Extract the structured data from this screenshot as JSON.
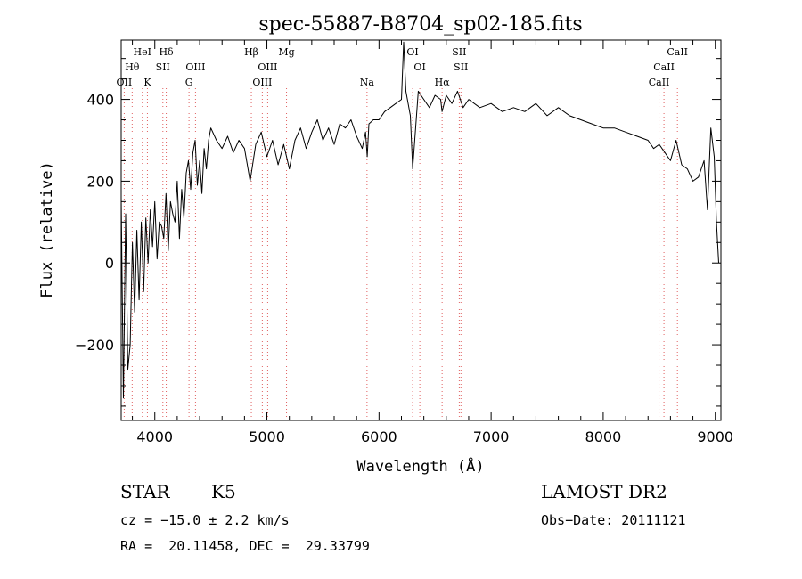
{
  "chart_data": {
    "type": "line",
    "title": "spec-55887-B8704_sp02-185.fits",
    "xlabel": "Wavelength (Å)",
    "ylabel": "Flux (relative)",
    "xlim": [
      3700,
      9050
    ],
    "ylim": [
      -385,
      545
    ],
    "x_ticks": [
      4000,
      5000,
      6000,
      7000,
      8000,
      9000
    ],
    "y_ticks": [
      -200,
      0,
      200,
      400
    ],
    "grid": false,
    "line_color": "#000000",
    "marker_line_color": "#e06060",
    "series": [
      {
        "x": [
          3700,
          3720,
          3740,
          3760,
          3780,
          3800,
          3820,
          3840,
          3860,
          3880,
          3900,
          3920,
          3940,
          3960,
          3980,
          4000,
          4020,
          4040,
          4060,
          4080,
          4100,
          4120,
          4140,
          4160,
          4180,
          4200,
          4220,
          4240,
          4260,
          4280,
          4300,
          4320,
          4340,
          4360,
          4380,
          4400,
          4420,
          4440,
          4460,
          4480,
          4500,
          4550,
          4600,
          4650,
          4700,
          4750,
          4800,
          4850,
          4900,
          4950,
          5000,
          5050,
          5100,
          5150,
          5200,
          5250,
          5300,
          5350,
          5400,
          5450,
          5500,
          5550,
          5600,
          5650,
          5700,
          5750,
          5800,
          5850,
          5880,
          5895,
          5910,
          5950,
          6000,
          6050,
          6100,
          6150,
          6200,
          6220,
          6240,
          6260,
          6280,
          6300,
          6350,
          6400,
          6450,
          6500,
          6550,
          6563,
          6600,
          6650,
          6700,
          6750,
          6800,
          6900,
          7000,
          7100,
          7200,
          7300,
          7400,
          7500,
          7600,
          7700,
          7800,
          7900,
          8000,
          8100,
          8200,
          8300,
          8400,
          8450,
          8500,
          8550,
          8600,
          8650,
          8700,
          8750,
          8800,
          8850,
          8900,
          8930,
          8960,
          8990,
          9010,
          9030
        ],
        "values": [
          160,
          -330,
          120,
          -260,
          -200,
          50,
          -120,
          80,
          -90,
          100,
          -70,
          110,
          0,
          130,
          40,
          150,
          10,
          100,
          90,
          60,
          170,
          30,
          150,
          120,
          100,
          200,
          60,
          180,
          110,
          220,
          250,
          180,
          270,
          300,
          190,
          250,
          170,
          280,
          230,
          300,
          330,
          300,
          280,
          310,
          270,
          300,
          280,
          200,
          290,
          320,
          260,
          300,
          240,
          290,
          230,
          300,
          330,
          280,
          320,
          350,
          300,
          330,
          290,
          340,
          330,
          350,
          310,
          280,
          320,
          260,
          340,
          350,
          350,
          370,
          380,
          390,
          400,
          540,
          420,
          390,
          360,
          230,
          420,
          400,
          380,
          410,
          400,
          370,
          410,
          390,
          420,
          380,
          400,
          380,
          390,
          370,
          380,
          370,
          390,
          360,
          380,
          360,
          350,
          340,
          330,
          330,
          320,
          310,
          300,
          280,
          290,
          270,
          250,
          300,
          240,
          230,
          200,
          210,
          250,
          130,
          330,
          260,
          100,
          0
        ]
      }
    ],
    "line_markers": [
      {
        "label": "OII",
        "x": 3727,
        "row": 3
      },
      {
        "label": "Hθ",
        "x": 3798,
        "row": 2
      },
      {
        "label": "HeI",
        "x": 3889,
        "row": 1
      },
      {
        "label": "K",
        "x": 3934,
        "row": 3
      },
      {
        "label": "Hδ",
        "x": 4102,
        "row": 1
      },
      {
        "label": "SII",
        "x": 4072,
        "row": 2
      },
      {
        "label": "G",
        "x": 4305,
        "row": 3
      },
      {
        "label": "OIII",
        "x": 4363,
        "row": 2
      },
      {
        "label": "Hβ",
        "x": 4861,
        "row": 1
      },
      {
        "label": "OIII",
        "x": 4959,
        "row": 3
      },
      {
        "label": "OIII",
        "x": 5007,
        "row": 2
      },
      {
        "label": "Mg",
        "x": 5175,
        "row": 1
      },
      {
        "label": "Na",
        "x": 5893,
        "row": 3
      },
      {
        "label": "OI",
        "x": 6300,
        "row": 1
      },
      {
        "label": "OI",
        "x": 6364,
        "row": 2
      },
      {
        "label": "Hα",
        "x": 6563,
        "row": 3
      },
      {
        "label": "SII",
        "x": 6716,
        "row": 1
      },
      {
        "label": "SII",
        "x": 6731,
        "row": 2
      },
      {
        "label": "CaII",
        "x": 8498,
        "row": 3
      },
      {
        "label": "CaII",
        "x": 8542,
        "row": 2
      },
      {
        "label": "CaII",
        "x": 8662,
        "row": 1
      }
    ]
  },
  "info": {
    "class_label": "STAR",
    "subclass": "K5",
    "survey": "LAMOST DR2",
    "cz": "cz = −15.0 ± 2.2 km/s",
    "obs_date": "Obs−Date: 20111121",
    "coords": "RA =  20.11458, DEC =  29.33799"
  }
}
